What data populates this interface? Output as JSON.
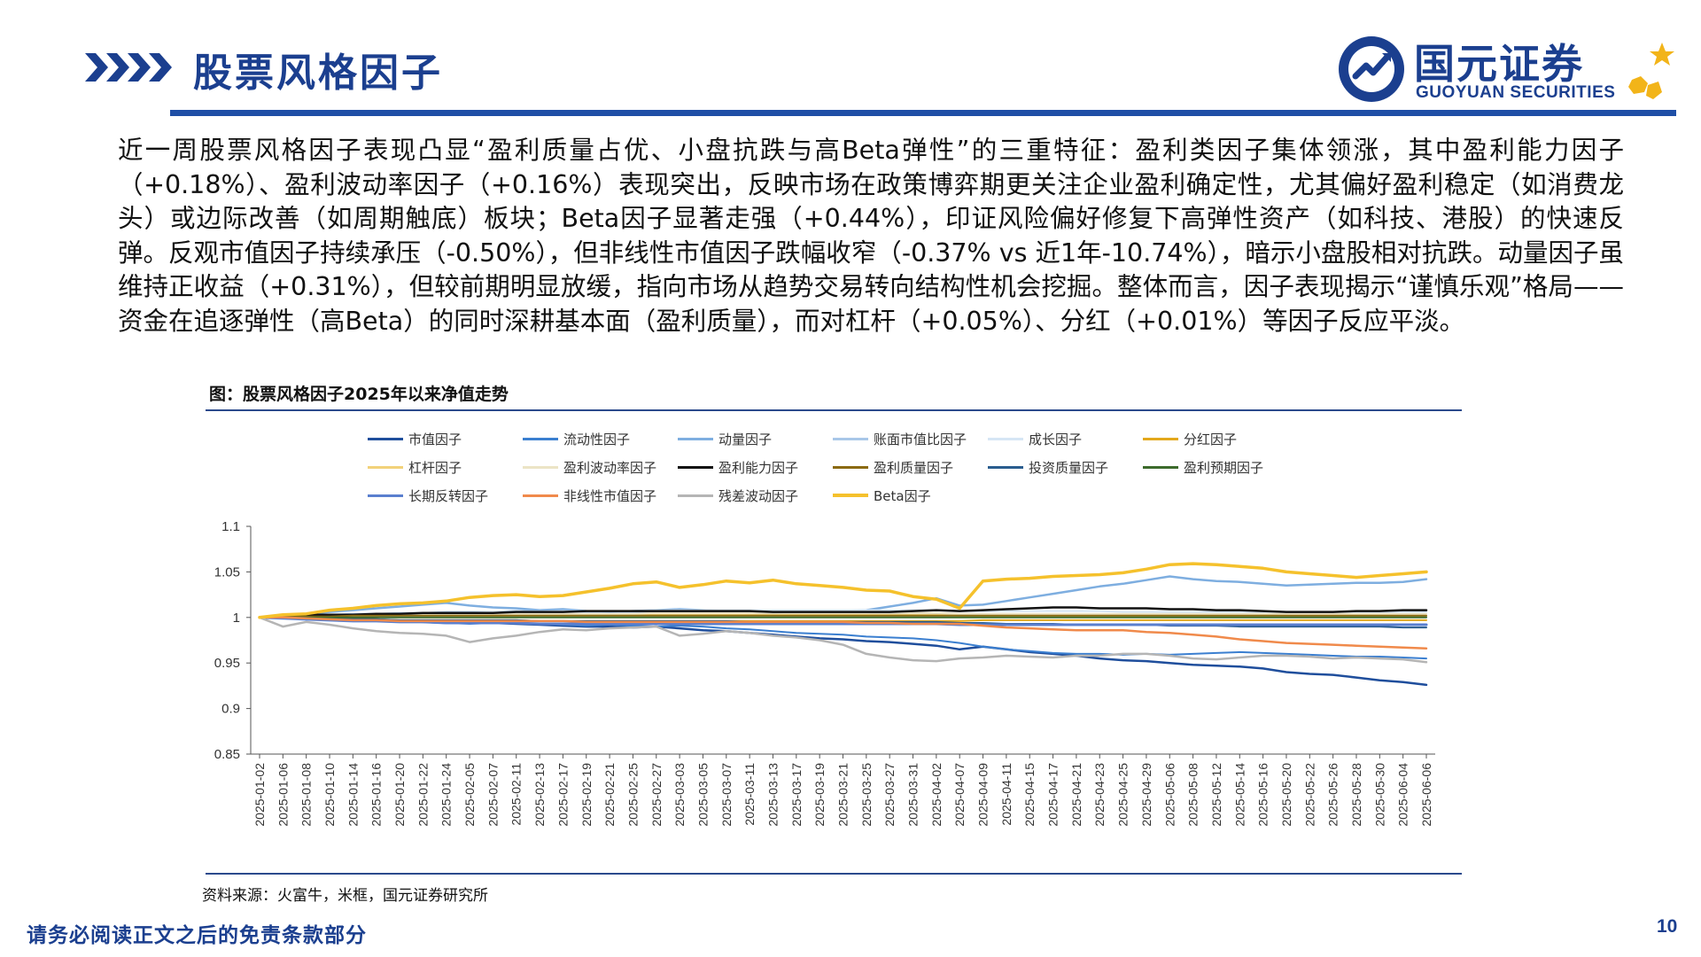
{
  "header": {
    "title": "股票风格因子",
    "logo_cn": "国元证券",
    "logo_en": "GUOYUAN SECURITIES",
    "brand_color": "#1b3f8f",
    "accent_color": "#f2b419"
  },
  "body_text": "近一周股票风格因子表现凸显“盈利质量占优、小盘抗跌与高Beta弹性”的三重特征：盈利类因子集体领涨，其中盈利能力因子（+0.18%）、盈利波动率因子（+0.16%）表现突出，反映市场在政策博弈期更关注企业盈利确定性，尤其偏好盈利稳定（如消费龙头）或边际改善（如周期触底）板块；Beta因子显著走强（+0.44%），印证风险偏好修复下高弹性资产（如科技、港股）的快速反弹。反观市值因子持续承压（-0.50%），但非线性市值因子跌幅收窄（-0.37% vs 近1年-10.74%），暗示小盘股相对抗跌。动量因子虽维持正收益（+0.31%），但较前期明显放缓，指向市场从趋势交易转向结构性机会挖掘。整体而言，因子表现揭示“谨慎乐观”格局——资金在追逐弹性（高Beta）的同时深耕基本面（盈利质量），而对杠杆（+0.05%）、分红（+0.01%）等因子反应平淡。",
  "figure": {
    "title": "图：股票风格因子2025年以来净值走势",
    "source": "资料来源：火富牛，米框，国元证券研究所"
  },
  "footer": {
    "disclaimer": "请务必阅读正文之后的免责条款部分",
    "page_number": "10"
  },
  "chart_data": {
    "type": "line",
    "title": "",
    "xlabel": "",
    "ylabel": "",
    "ylim": [
      0.85,
      1.1
    ],
    "yticks": [
      "0.85",
      "0.9",
      "0.95",
      "1",
      "1.05",
      "1.1"
    ],
    "grid": false,
    "legend_position": "top",
    "categories": [
      "2025-01-02",
      "2025-01-06",
      "2025-01-08",
      "2025-01-10",
      "2025-01-14",
      "2025-01-16",
      "2025-01-20",
      "2025-01-22",
      "2025-01-24",
      "2025-02-05",
      "2025-02-07",
      "2025-02-11",
      "2025-02-13",
      "2025-02-17",
      "2025-02-19",
      "2025-02-21",
      "2025-02-25",
      "2025-02-27",
      "2025-03-03",
      "2025-03-05",
      "2025-03-07",
      "2025-03-11",
      "2025-03-13",
      "2025-03-17",
      "2025-03-19",
      "2025-03-21",
      "2025-03-25",
      "2025-03-27",
      "2025-03-31",
      "2025-04-02",
      "2025-04-07",
      "2025-04-09",
      "2025-04-11",
      "2025-04-15",
      "2025-04-17",
      "2025-04-21",
      "2025-04-23",
      "2025-04-25",
      "2025-04-29",
      "2025-05-06",
      "2025-05-08",
      "2025-05-12",
      "2025-05-14",
      "2025-05-16",
      "2025-05-20",
      "2025-05-22",
      "2025-05-26",
      "2025-05-28",
      "2025-05-30",
      "2025-06-04",
      "2025-06-06"
    ],
    "series": [
      {
        "name": "市值因子",
        "color": "#1f4e9c",
        "width": 2.5,
        "values": [
          1,
          1.002,
          1.001,
          1,
          0.999,
          0.998,
          0.996,
          0.995,
          0.994,
          0.995,
          0.994,
          0.993,
          0.992,
          0.991,
          0.99,
          0.99,
          0.989,
          0.99,
          0.988,
          0.986,
          0.985,
          0.983,
          0.981,
          0.979,
          0.977,
          0.976,
          0.974,
          0.973,
          0.971,
          0.969,
          0.965,
          0.968,
          0.965,
          0.962,
          0.96,
          0.958,
          0.955,
          0.953,
          0.952,
          0.95,
          0.948,
          0.947,
          0.946,
          0.944,
          0.94,
          0.938,
          0.937,
          0.934,
          0.931,
          0.929,
          0.926
        ]
      },
      {
        "name": "流动性因子",
        "color": "#3b7fd0",
        "width": 2,
        "values": [
          1,
          1.001,
          0.999,
          0.998,
          0.997,
          0.996,
          0.995,
          0.995,
          0.994,
          0.993,
          0.994,
          0.994,
          0.993,
          0.992,
          0.991,
          0.992,
          0.991,
          0.99,
          0.991,
          0.99,
          0.988,
          0.987,
          0.985,
          0.983,
          0.982,
          0.981,
          0.979,
          0.978,
          0.977,
          0.975,
          0.972,
          0.968,
          0.965,
          0.963,
          0.961,
          0.96,
          0.96,
          0.959,
          0.96,
          0.959,
          0.96,
          0.961,
          0.962,
          0.961,
          0.96,
          0.959,
          0.958,
          0.957,
          0.957,
          0.956,
          0.955
        ]
      },
      {
        "name": "动量因子",
        "color": "#7eaee0",
        "width": 2.5,
        "values": [
          1,
          1.002,
          1.004,
          1.006,
          1.008,
          1.01,
          1.012,
          1.014,
          1.016,
          1.013,
          1.011,
          1.01,
          1.008,
          1.009,
          1.007,
          1.006,
          1.007,
          1.008,
          1.009,
          1.008,
          1.007,
          1.006,
          1.005,
          1.006,
          1.006,
          1.007,
          1.008,
          1.012,
          1.016,
          1.021,
          1.013,
          1.014,
          1.018,
          1.022,
          1.026,
          1.03,
          1.034,
          1.037,
          1.041,
          1.045,
          1.042,
          1.04,
          1.039,
          1.037,
          1.035,
          1.036,
          1.037,
          1.038,
          1.038,
          1.039,
          1.042
        ]
      },
      {
        "name": "账面市值比因子",
        "color": "#a9c7e8",
        "width": 2,
        "values": [
          1,
          1.001,
          1.002,
          1.003,
          1.004,
          1.004,
          1.005,
          1.005,
          1.006,
          1.006,
          1.006,
          1.007,
          1.007,
          1.007,
          1.006,
          1.006,
          1.006,
          1.006,
          1.006,
          1.006,
          1.006,
          1.005,
          1.005,
          1.005,
          1.005,
          1.005,
          1.005,
          1.004,
          1.004,
          1.004,
          1.003,
          1.003,
          1.003,
          1.003,
          1.003,
          1.003,
          1.003,
          1.003,
          1.002,
          1.002,
          1.002,
          1.002,
          1.002,
          1.002,
          1.002,
          1.001,
          1.001,
          1.001,
          1.001,
          1.001,
          1.001
        ]
      },
      {
        "name": "成长因子",
        "color": "#d6e6f5",
        "width": 2,
        "values": [
          1,
          1.001,
          1.002,
          1.002,
          1.003,
          1.003,
          1.004,
          1.004,
          1.005,
          1.005,
          1.006,
          1.006,
          1.006,
          1.007,
          1.007,
          1.007,
          1.007,
          1.008,
          1.008,
          1.008,
          1.008,
          1.008,
          1.008,
          1.008,
          1.008,
          1.008,
          1.008,
          1.008,
          1.008,
          1.008,
          1.007,
          1.007,
          1.007,
          1.007,
          1.007,
          1.007,
          1.007,
          1.006,
          1.006,
          1.006,
          1.006,
          1.006,
          1.006,
          1.006,
          1.006,
          1.006,
          1.006,
          1.006,
          1.006,
          1.006,
          1.006
        ]
      },
      {
        "name": "分红因子",
        "color": "#e3a81c",
        "width": 2,
        "values": [
          1,
          0.999,
          0.999,
          0.998,
          0.998,
          0.998,
          0.997,
          0.997,
          0.997,
          0.997,
          0.997,
          0.997,
          0.996,
          0.996,
          0.996,
          0.996,
          0.996,
          0.996,
          0.996,
          0.996,
          0.996,
          0.996,
          0.996,
          0.996,
          0.996,
          0.996,
          0.996,
          0.996,
          0.996,
          0.996,
          0.996,
          0.997,
          0.997,
          0.997,
          0.997,
          0.997,
          0.997,
          0.997,
          0.997,
          0.997,
          0.997,
          0.997,
          0.997,
          0.997,
          0.997,
          0.997,
          0.997,
          0.997,
          0.997,
          0.997,
          0.997
        ]
      },
      {
        "name": "杠杆因子",
        "color": "#f2d27a",
        "width": 2,
        "values": [
          1,
          1.001,
          1.001,
          1.002,
          1.002,
          1.002,
          1.003,
          1.003,
          1.003,
          1.003,
          1.003,
          1.003,
          1.003,
          1.003,
          1.003,
          1.003,
          1.003,
          1.003,
          1.003,
          1.003,
          1.003,
          1.003,
          1.003,
          1.003,
          1.003,
          1.003,
          1.003,
          1.003,
          1.003,
          1.003,
          1.002,
          1.002,
          1.002,
          1.002,
          1.002,
          1.002,
          1.002,
          1.002,
          1.002,
          1.002,
          1.002,
          1.002,
          1.002,
          1.002,
          1.002,
          1.002,
          1.002,
          1.002,
          1.002,
          1.002,
          1.002
        ]
      },
      {
        "name": "盈利波动率因子",
        "color": "#ece4c6",
        "width": 2,
        "values": [
          1,
          1.001,
          1.001,
          1.002,
          1.002,
          1.002,
          1.003,
          1.003,
          1.003,
          1.003,
          1.004,
          1.004,
          1.004,
          1.004,
          1.004,
          1.004,
          1.004,
          1.005,
          1.005,
          1.005,
          1.005,
          1.005,
          1.005,
          1.005,
          1.005,
          1.005,
          1.005,
          1.005,
          1.005,
          1.005,
          1.004,
          1.004,
          1.004,
          1.004,
          1.004,
          1.004,
          1.004,
          1.004,
          1.004,
          1.004,
          1.004,
          1.004,
          1.004,
          1.004,
          1.004,
          1.004,
          1.004,
          1.004,
          1.004,
          1.004,
          1.004
        ]
      },
      {
        "name": "盈利能力因子",
        "color": "#111111",
        "width": 2.5,
        "values": [
          1,
          1.002,
          1.003,
          1.003,
          1.003,
          1.004,
          1.004,
          1.005,
          1.005,
          1.005,
          1.005,
          1.006,
          1.006,
          1.006,
          1.007,
          1.007,
          1.007,
          1.007,
          1.007,
          1.007,
          1.007,
          1.007,
          1.006,
          1.006,
          1.006,
          1.006,
          1.006,
          1.006,
          1.007,
          1.008,
          1.007,
          1.008,
          1.009,
          1.01,
          1.011,
          1.011,
          1.01,
          1.01,
          1.01,
          1.009,
          1.009,
          1.008,
          1.008,
          1.007,
          1.006,
          1.006,
          1.006,
          1.007,
          1.007,
          1.008,
          1.008
        ]
      },
      {
        "name": "盈利质量因子",
        "color": "#8b6a10",
        "width": 2,
        "values": [
          1,
          1.001,
          1.001,
          1.001,
          1.002,
          1.002,
          1.002,
          1.002,
          1.002,
          1.002,
          1.002,
          1.002,
          1.002,
          1.002,
          1.002,
          1.002,
          1.002,
          1.002,
          1.002,
          1.002,
          1.002,
          1.002,
          1.002,
          1.002,
          1.002,
          1.002,
          1.002,
          1.002,
          1.002,
          1.002,
          1.002,
          1.002,
          1.002,
          1.002,
          1.002,
          1.002,
          1.002,
          1.002,
          1.002,
          1.002,
          1.002,
          1.002,
          1.002,
          1.002,
          1.002,
          1.002,
          1.002,
          1.002,
          1.002,
          1.002,
          1.002
        ]
      },
      {
        "name": "投资质量因子",
        "color": "#2a5d8f",
        "width": 2,
        "values": [
          1,
          0.999,
          0.999,
          0.998,
          0.998,
          0.998,
          0.997,
          0.997,
          0.997,
          0.997,
          0.997,
          0.997,
          0.996,
          0.996,
          0.996,
          0.996,
          0.996,
          0.996,
          0.996,
          0.996,
          0.996,
          0.995,
          0.995,
          0.995,
          0.995,
          0.995,
          0.995,
          0.995,
          0.995,
          0.995,
          0.994,
          0.994,
          0.993,
          0.993,
          0.993,
          0.992,
          0.992,
          0.992,
          0.992,
          0.991,
          0.991,
          0.991,
          0.99,
          0.99,
          0.99,
          0.99,
          0.99,
          0.99,
          0.99,
          0.989,
          0.989
        ]
      },
      {
        "name": "盈利预期因子",
        "color": "#3d6b2c",
        "width": 2,
        "values": [
          1,
          1,
          1,
          1,
          1,
          1,
          1,
          1,
          1,
          1,
          1,
          1,
          1,
          1,
          1,
          1,
          1,
          1,
          1,
          1,
          1,
          1,
          1,
          1,
          1,
          1,
          1,
          1,
          1,
          1,
          1,
          1,
          1,
          1,
          1,
          1,
          1,
          1,
          1,
          1,
          1,
          1,
          1,
          1,
          1,
          1,
          1,
          1,
          1,
          1,
          1
        ]
      },
      {
        "name": "长期反转因子",
        "color": "#5a7fcf",
        "width": 3,
        "values": [
          1,
          0.999,
          0.998,
          0.997,
          0.996,
          0.996,
          0.995,
          0.995,
          0.994,
          0.994,
          0.994,
          0.994,
          0.993,
          0.993,
          0.993,
          0.993,
          0.993,
          0.993,
          0.993,
          0.993,
          0.993,
          0.993,
          0.993,
          0.993,
          0.993,
          0.993,
          0.993,
          0.993,
          0.993,
          0.993,
          0.992,
          0.992,
          0.992,
          0.992,
          0.992,
          0.992,
          0.992,
          0.992,
          0.992,
          0.992,
          0.992,
          0.992,
          0.992,
          0.992,
          0.992,
          0.992,
          0.992,
          0.992,
          0.992,
          0.992,
          0.992
        ]
      },
      {
        "name": "非线性市值因子",
        "color": "#f08a4b",
        "width": 2.5,
        "values": [
          1,
          1,
          0.999,
          0.998,
          0.997,
          0.997,
          0.996,
          0.996,
          0.996,
          0.996,
          0.996,
          0.996,
          0.996,
          0.996,
          0.995,
          0.995,
          0.995,
          0.995,
          0.995,
          0.995,
          0.995,
          0.995,
          0.995,
          0.995,
          0.995,
          0.995,
          0.994,
          0.994,
          0.993,
          0.993,
          0.993,
          0.991,
          0.989,
          0.988,
          0.987,
          0.986,
          0.986,
          0.986,
          0.984,
          0.983,
          0.981,
          0.979,
          0.976,
          0.974,
          0.972,
          0.971,
          0.97,
          0.969,
          0.968,
          0.967,
          0.966
        ]
      },
      {
        "name": "残差波动因子",
        "color": "#b5b5b5",
        "width": 2.5,
        "values": [
          1,
          0.99,
          0.995,
          0.992,
          0.988,
          0.985,
          0.983,
          0.982,
          0.98,
          0.973,
          0.977,
          0.98,
          0.984,
          0.987,
          0.986,
          0.988,
          0.989,
          0.99,
          0.98,
          0.982,
          0.985,
          0.983,
          0.98,
          0.978,
          0.975,
          0.97,
          0.96,
          0.956,
          0.953,
          0.952,
          0.955,
          0.956,
          0.958,
          0.957,
          0.956,
          0.958,
          0.958,
          0.96,
          0.96,
          0.958,
          0.955,
          0.954,
          0.956,
          0.958,
          0.958,
          0.957,
          0.955,
          0.956,
          0.955,
          0.954,
          0.951
        ]
      },
      {
        "name": "Beta因子",
        "color": "#f5c12c",
        "width": 3.5,
        "values": [
          1,
          1.003,
          1.004,
          1.008,
          1.01,
          1.013,
          1.015,
          1.016,
          1.018,
          1.022,
          1.024,
          1.025,
          1.023,
          1.024,
          1.028,
          1.032,
          1.037,
          1.039,
          1.033,
          1.036,
          1.04,
          1.038,
          1.041,
          1.037,
          1.035,
          1.033,
          1.03,
          1.029,
          1.023,
          1.02,
          1.01,
          1.04,
          1.042,
          1.043,
          1.045,
          1.046,
          1.047,
          1.049,
          1.053,
          1.058,
          1.059,
          1.058,
          1.056,
          1.054,
          1.05,
          1.048,
          1.046,
          1.044,
          1.046,
          1.048,
          1.05
        ]
      }
    ]
  }
}
